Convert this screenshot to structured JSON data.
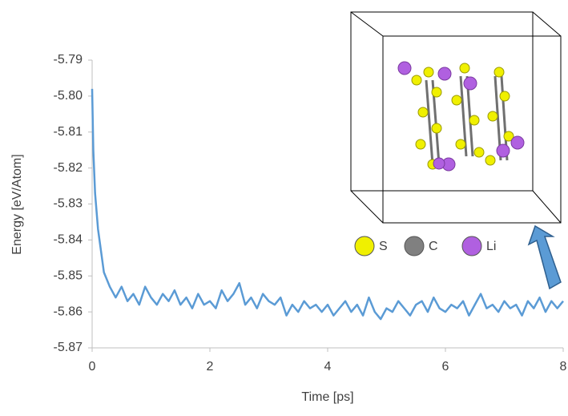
{
  "chart_data": {
    "type": "line",
    "x_label": "Time [ps]",
    "y_label": "Energy [eV/Atom]",
    "xlim": [
      0,
      8
    ],
    "xticks": [
      0,
      2,
      4,
      6,
      8
    ],
    "ylim": [
      -5.87,
      -5.79
    ],
    "yticks": [
      -5.79,
      {
        "value": -5.8,
        "label": "-5.80"
      },
      -5.81,
      -5.82,
      -5.83,
      -5.84,
      -5.85,
      -5.86,
      -5.87
    ],
    "grid": false,
    "series": [
      {
        "color": "#5b9bd5",
        "x": [
          0,
          0.02,
          0.05,
          0.1,
          0.15,
          0.2,
          0.3,
          0.4,
          0.5,
          0.6,
          0.7,
          0.8,
          0.9,
          1.0,
          1.1,
          1.2,
          1.3,
          1.4,
          1.5,
          1.6,
          1.7,
          1.8,
          1.9,
          2.0,
          2.1,
          2.2,
          2.3,
          2.4,
          2.5,
          2.6,
          2.7,
          2.8,
          2.9,
          3.0,
          3.1,
          3.2,
          3.3,
          3.4,
          3.5,
          3.6,
          3.7,
          3.8,
          3.9,
          4.0,
          4.1,
          4.2,
          4.3,
          4.4,
          4.5,
          4.6,
          4.7,
          4.8,
          4.9,
          5.0,
          5.1,
          5.2,
          5.3,
          5.4,
          5.5,
          5.6,
          5.7,
          5.8,
          5.9,
          6.0,
          6.1,
          6.2,
          6.3,
          6.4,
          6.5,
          6.6,
          6.7,
          6.8,
          6.9,
          7.0,
          7.1,
          7.2,
          7.3,
          7.4,
          7.5,
          7.6,
          7.7,
          7.8,
          7.9,
          8.0
        ],
        "values": [
          -5.798,
          -5.815,
          -5.827,
          -5.837,
          -5.843,
          -5.849,
          -5.853,
          -5.856,
          -5.853,
          -5.857,
          -5.855,
          -5.858,
          -5.853,
          -5.856,
          -5.858,
          -5.855,
          -5.857,
          -5.854,
          -5.858,
          -5.856,
          -5.859,
          -5.855,
          -5.858,
          -5.857,
          -5.859,
          -5.854,
          -5.857,
          -5.855,
          -5.852,
          -5.858,
          -5.856,
          -5.859,
          -5.855,
          -5.857,
          -5.858,
          -5.856,
          -5.861,
          -5.858,
          -5.86,
          -5.857,
          -5.859,
          -5.858,
          -5.86,
          -5.858,
          -5.861,
          -5.859,
          -5.857,
          -5.86,
          -5.858,
          -5.861,
          -5.856,
          -5.86,
          -5.862,
          -5.859,
          -5.86,
          -5.857,
          -5.859,
          -5.861,
          -5.858,
          -5.857,
          -5.86,
          -5.856,
          -5.859,
          -5.86,
          -5.858,
          -5.859,
          -5.857,
          -5.861,
          -5.858,
          -5.855,
          -5.859,
          -5.858,
          -5.86,
          -5.857,
          -5.859,
          -5.858,
          -5.861,
          -5.857,
          -5.859,
          -5.856,
          -5.86,
          -5.857,
          -5.859,
          -5.857
        ]
      }
    ]
  },
  "inset": {
    "legend": [
      {
        "label": "S",
        "color": "#f0f000"
      },
      {
        "label": "C",
        "color": "#808080"
      },
      {
        "label": "Li",
        "color": "#b060e0"
      }
    ]
  }
}
